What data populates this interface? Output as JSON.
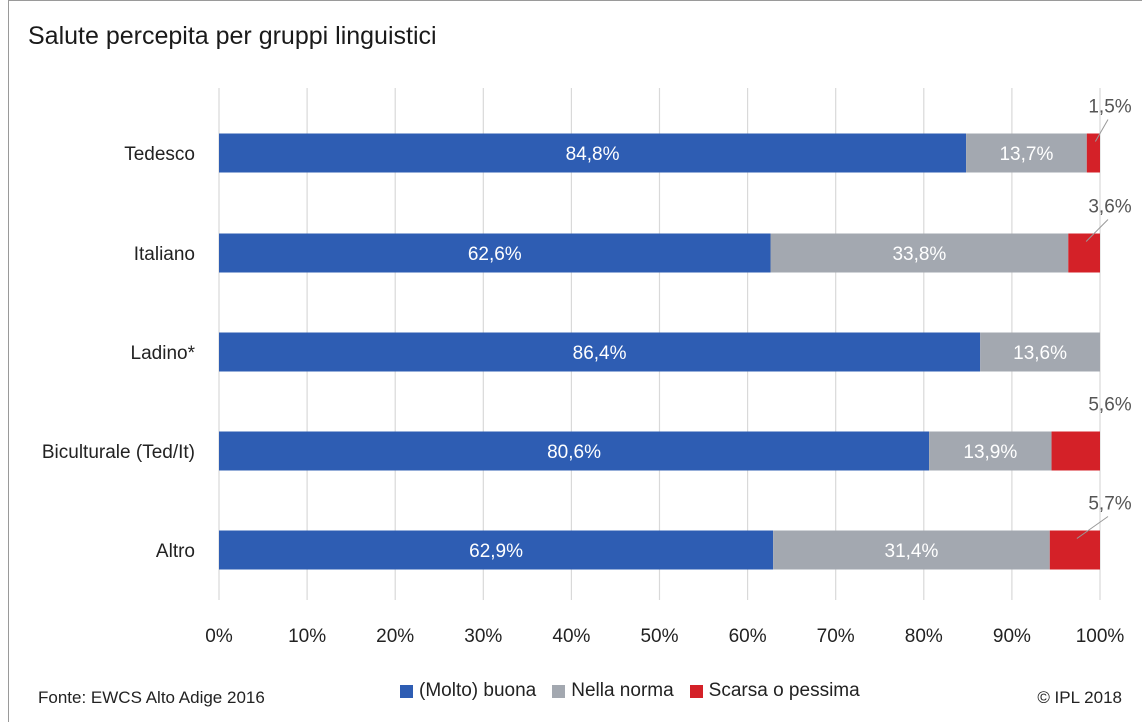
{
  "title": "Salute percepita per gruppi linguistici",
  "source": "Fonte: EWCS Alto Adige 2016",
  "copyright": "© IPL 2018",
  "chart_data": {
    "type": "bar",
    "orientation": "horizontal",
    "stacked": true,
    "title": "Salute percepita per gruppi linguistici",
    "categories": [
      "Tedesco",
      "Italiano",
      "Ladino*",
      "Biculturale (Ted/It)",
      "Altro"
    ],
    "series": [
      {
        "name": "(Molto) buona",
        "color": "#2e5db3",
        "values": [
          84.8,
          62.6,
          86.4,
          80.6,
          62.9
        ],
        "labels": [
          "84,8%",
          "62,6%",
          "86,4%",
          "80,6%",
          "62,9%"
        ]
      },
      {
        "name": "Nella norma",
        "color": "#a3a8b0",
        "values": [
          13.7,
          33.8,
          13.6,
          13.9,
          31.4
        ],
        "labels": [
          "13,7%",
          "33,8%",
          "13,6%",
          "13,9%",
          "31,4%"
        ]
      },
      {
        "name": "Scarsa o pessima",
        "color": "#d42128",
        "values": [
          1.5,
          3.6,
          0,
          5.6,
          5.7
        ],
        "labels": [
          "1,5%",
          "3,6%",
          "",
          "5,6%",
          "5,7%"
        ]
      }
    ],
    "xlim": [
      0,
      100
    ],
    "xticks": [
      "0%",
      "10%",
      "20%",
      "30%",
      "40%",
      "50%",
      "60%",
      "70%",
      "80%",
      "90%",
      "100%"
    ],
    "grid": true,
    "legend": "bottom"
  }
}
